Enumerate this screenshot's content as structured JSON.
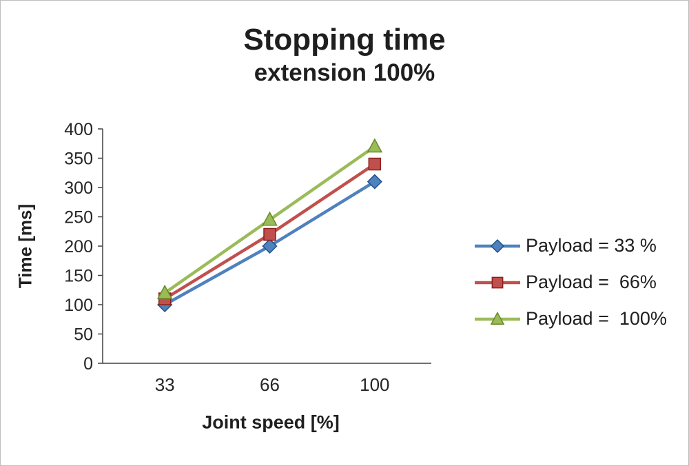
{
  "chart_data": {
    "type": "line",
    "title": "Stopping time",
    "subtitle": "extension 100%",
    "categories": [
      "33",
      "66",
      "100"
    ],
    "xlabel": "Joint speed [%]",
    "ylabel": "Time [ms]",
    "ylim": [
      0,
      400
    ],
    "ytick_step": 50,
    "grid": false,
    "legend_position": "right",
    "axis_color": "#404040",
    "series": [
      {
        "name": "Payload = 33 %",
        "color": "#4f81bd",
        "marker": "diamond",
        "values": [
          100,
          200,
          310
        ]
      },
      {
        "name": "Payload =  66%",
        "color": "#c0504d",
        "marker": "square",
        "values": [
          110,
          220,
          340
        ]
      },
      {
        "name": "Payload =  100%",
        "color": "#9bbb59",
        "marker": "triangle",
        "values": [
          120,
          245,
          370
        ]
      }
    ]
  }
}
